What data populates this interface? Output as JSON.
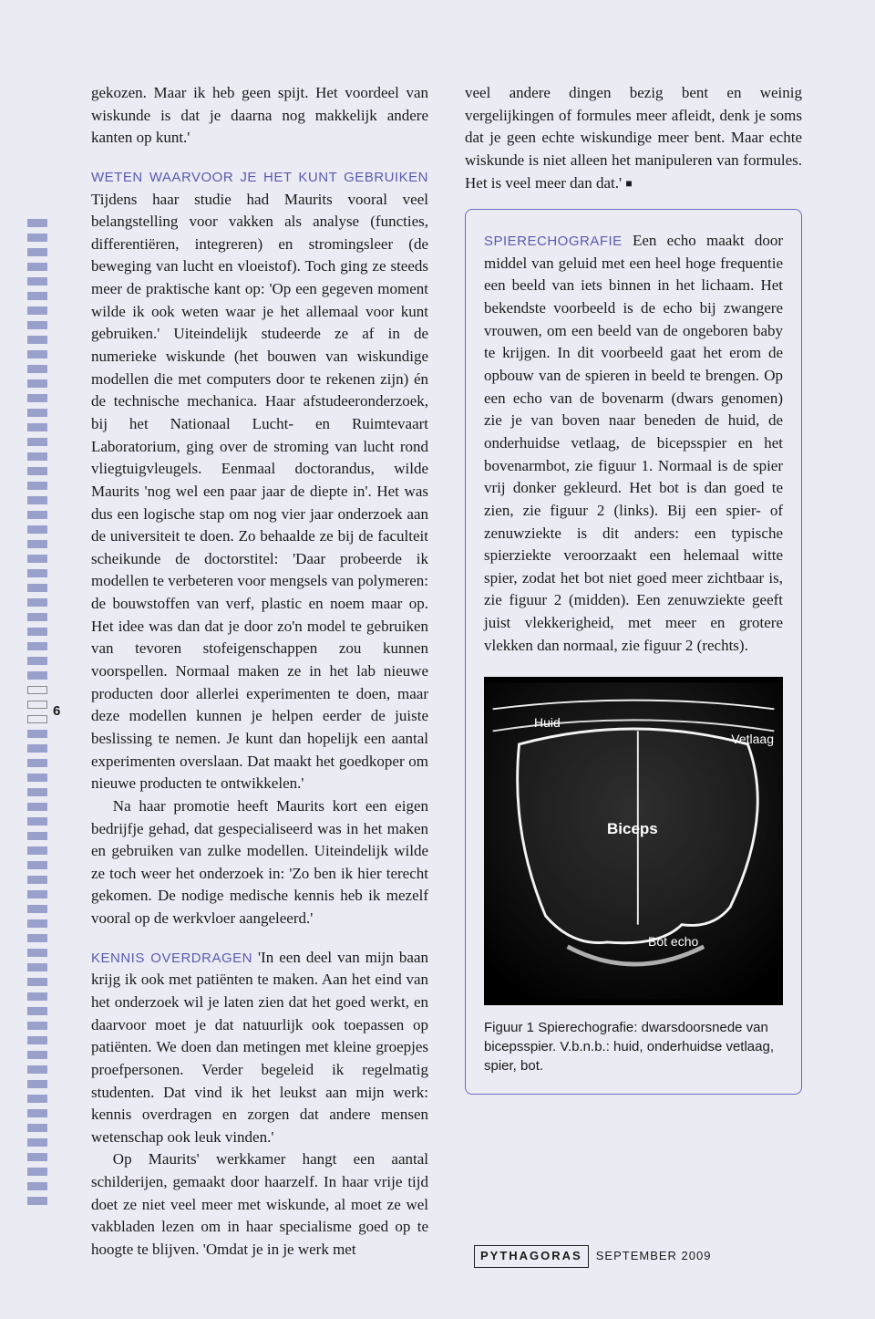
{
  "page_number": "6",
  "left_column": {
    "intro": "gekozen. Maar ik heb geen spijt. Het voordeel van wiskunde is dat je daarna nog makkelijk andere kanten op kunt.'",
    "section1_head": "WETEN WAARVOOR JE HET KUNT GEBRUIKEN",
    "section1_body": " Tijdens haar studie had Maurits vooral veel belangstelling voor vakken als analyse (functies, differentiëren, integreren) en stromingsleer (de beweging van lucht en vloeistof). Toch ging ze steeds meer de praktische kant op: 'Op een gegeven moment wilde ik ook weten waar je het allemaal voor kunt gebruiken.' Uiteindelijk studeerde ze af in de numerieke wiskunde (het bouwen van wiskundige modellen die met computers door te rekenen zijn) én de technische mechanica. Haar afstudeeronderzoek, bij het Nationaal Lucht- en Ruimtevaart Laboratorium, ging over de stroming van lucht rond vliegtuigvleugels. Eenmaal doctorandus, wilde Maurits 'nog wel een paar jaar de diepte in'. Het was dus een logische stap om nog vier jaar onderzoek aan de universiteit te doen. Zo behaalde ze bij de faculteit scheikunde de doctorstitel: 'Daar probeerde ik modellen te verbeteren voor mengsels van polymeren: de bouwstoffen van verf, plastic en noem maar op. Het idee was dan dat je door zo'n model te gebruiken van tevoren stofeigenschappen zou kunnen voorspellen. Normaal maken ze in het lab nieuwe producten door allerlei experimenten te doen, maar deze modellen kunnen je helpen eerder de juiste beslissing te nemen. Je kunt dan hopelijk een aantal experimenten overslaan. Dat maakt het goedkoper om nieuwe producten te ontwikkelen.'",
    "section1_p2": "Na haar promotie heeft Maurits kort een eigen bedrijfje gehad, dat gespecialiseerd was in het maken en gebruiken van zulke modellen. Uiteindelijk wilde ze toch weer het onderzoek in: 'Zo ben ik hier terecht gekomen. De nodige medische kennis heb ik mezelf vooral op de werkvloer aangeleerd.'",
    "section2_head": "KENNIS OVERDRAGEN",
    "section2_body": " 'In een deel van mijn baan krijg ik ook met patiënten te maken. Aan het eind van het onderzoek wil je laten zien dat het goed werkt, en daarvoor moet je dat natuurlijk ook toepassen op patiënten. We doen dan metingen met kleine groepjes proefpersonen. Verder begeleid ik regelmatig studenten. Dat vind ik het leukst aan mijn werk: kennis overdragen en zorgen dat andere mensen wetenschap ook leuk vinden.'",
    "section2_p2": "Op Maurits' werkkamer hangt een aantal schilderijen, gemaakt door haarzelf. In haar vrije tijd doet ze niet veel meer met wiskunde, al moet ze wel vakbladen lezen om in haar specialisme goed op te hoogte te blijven. 'Omdat je in je werk met"
  },
  "right_column": {
    "continuation": "veel andere dingen bezig bent en weinig vergelijkingen of formules meer afleidt, denk je soms dat je geen echte wiskundige meer bent. Maar echte wiskunde is niet alleen het manipuleren van formules. Het is veel meer dan dat.' ",
    "endmark": "■",
    "sidebox_head": "SPIERECHOGRAFIE",
    "sidebox_body": " Een echo maakt door middel van geluid met een heel hoge frequentie een beeld van iets binnen in het lichaam. Het bekendste voorbeeld is de echo bij zwangere vrouwen, om een beeld van de ongeboren baby te krijgen. In dit voorbeeld gaat het erom de opbouw van de spieren in beeld te brengen. Op een echo van de bovenarm (dwars genomen) zie je van boven naar beneden de huid, de onderhuidse vetlaag, de bicepsspier en het bovenarmbot, zie figuur 1. Normaal is de spier vrij donker gekleurd. Het bot is dan goed te zien, zie figuur 2 (links). Bij een spier- of zenuwziekte is dit anders: een typische spierziekte veroorzaakt een helemaal witte spier, zodat het bot niet goed meer zichtbaar is, zie figuur 2 (midden). Een zenuwziekte geeft juist vlekkerigheid, met meer en grotere vlekken dan normaal, zie figuur 2 (rechts).",
    "figure_labels": {
      "huid": "Huid",
      "vetlaag": "Vetlaag",
      "biceps": "Biceps",
      "bot": "Bot echo"
    },
    "caption": "Figuur 1  Spierechografie: dwarsdoorsnede van bicepsspier. V.b.n.b.: huid, onderhuidse vetlaag, spier, bot."
  },
  "footer": {
    "brand": "PYTHAGORAS",
    "issue": "SEPTEMBER 2009"
  },
  "colors": {
    "bg": "#ebebf3",
    "accent": "#5a5ab0",
    "border": "#6a6ac0",
    "tick": "#9aa0cc"
  },
  "left_marks": {
    "pattern": [
      "t",
      "t",
      "t",
      "t",
      "t",
      "t",
      "t",
      "t",
      "t",
      "t",
      "t",
      "t",
      "t",
      "t",
      "t",
      "t",
      "t",
      "t",
      "t",
      "t",
      "t",
      "t",
      "t",
      "t",
      "t",
      "t",
      "t",
      "t",
      "t",
      "t",
      "t",
      "t",
      "h",
      "h",
      "h",
      "t",
      "t",
      "t",
      "t",
      "t",
      "t",
      "t",
      "t",
      "t",
      "t",
      "t",
      "t",
      "t",
      "t",
      "t",
      "t",
      "t",
      "t",
      "t",
      "t",
      "t",
      "t",
      "t",
      "t",
      "t",
      "t",
      "t",
      "t",
      "t",
      "t",
      "t",
      "t",
      "t"
    ]
  }
}
